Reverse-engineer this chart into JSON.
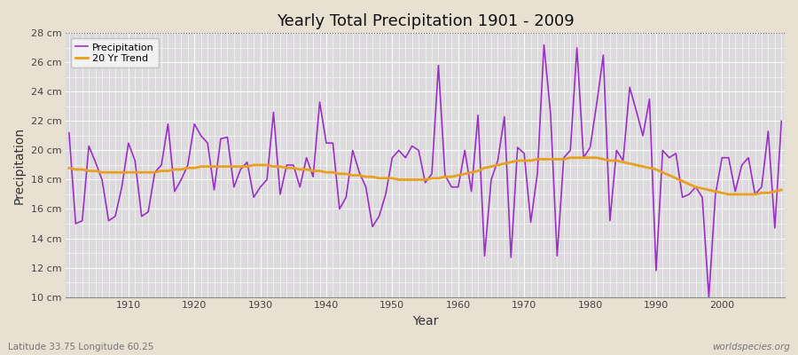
{
  "title": "Yearly Total Precipitation 1901 - 2009",
  "xlabel": "Year",
  "ylabel": "Precipitation",
  "subtitle_left": "Latitude 33.75 Longitude 60.25",
  "subtitle_right": "worldspecies.org",
  "precip_color": "#9B2FC9",
  "trend_color": "#E8A020",
  "fig_bg_color": "#E8E0D0",
  "plot_bg_color": "#DCDADC",
  "grid_color": "#FFFFFF",
  "ylim": [
    10,
    28
  ],
  "yticks": [
    10,
    12,
    14,
    16,
    18,
    20,
    22,
    24,
    26,
    28
  ],
  "years": [
    1901,
    1902,
    1903,
    1904,
    1905,
    1906,
    1907,
    1908,
    1909,
    1910,
    1911,
    1912,
    1913,
    1914,
    1915,
    1916,
    1917,
    1918,
    1919,
    1920,
    1921,
    1922,
    1923,
    1924,
    1925,
    1926,
    1927,
    1928,
    1929,
    1930,
    1931,
    1932,
    1933,
    1934,
    1935,
    1936,
    1937,
    1938,
    1939,
    1940,
    1941,
    1942,
    1943,
    1944,
    1945,
    1946,
    1947,
    1948,
    1949,
    1950,
    1951,
    1952,
    1953,
    1954,
    1955,
    1956,
    1957,
    1958,
    1959,
    1960,
    1961,
    1962,
    1963,
    1964,
    1965,
    1966,
    1967,
    1968,
    1969,
    1970,
    1971,
    1972,
    1973,
    1974,
    1975,
    1976,
    1977,
    1978,
    1979,
    1980,
    1981,
    1982,
    1983,
    1984,
    1985,
    1986,
    1987,
    1988,
    1989,
    1990,
    1991,
    1992,
    1993,
    1994,
    1995,
    1996,
    1997,
    1998,
    1999,
    2000,
    2001,
    2002,
    2003,
    2004,
    2005,
    2006,
    2007,
    2008,
    2009
  ],
  "precip": [
    21.2,
    15.0,
    15.2,
    20.3,
    19.2,
    18.0,
    15.2,
    15.5,
    17.5,
    20.5,
    19.3,
    15.5,
    15.8,
    18.5,
    19.0,
    21.8,
    17.2,
    18.0,
    19.0,
    21.8,
    21.0,
    20.5,
    17.3,
    20.8,
    20.9,
    17.5,
    18.7,
    19.2,
    16.8,
    17.5,
    18.0,
    22.6,
    17.0,
    19.0,
    19.0,
    17.5,
    19.5,
    18.2,
    23.3,
    20.5,
    20.5,
    16.0,
    16.8,
    20.0,
    18.5,
    17.5,
    14.8,
    15.5,
    17.0,
    19.5,
    20.0,
    19.5,
    20.3,
    20.0,
    17.8,
    18.4,
    25.8,
    18.3,
    17.5,
    17.5,
    20.0,
    17.2,
    22.4,
    12.8,
    18.0,
    19.3,
    22.3,
    12.7,
    20.2,
    19.8,
    15.1,
    18.4,
    27.2,
    22.5,
    12.8,
    19.5,
    20.0,
    27.0,
    19.5,
    20.2,
    23.2,
    26.5,
    15.2,
    20.0,
    19.3,
    24.3,
    22.7,
    21.0,
    23.5,
    11.8,
    20.0,
    19.5,
    19.8,
    16.8,
    17.0,
    17.5,
    16.8,
    10.0,
    17.0,
    19.5,
    19.5,
    17.2,
    19.0,
    19.5,
    17.0,
    17.5,
    21.3,
    14.7,
    22.0
  ],
  "trend": [
    18.8,
    18.7,
    18.7,
    18.6,
    18.6,
    18.5,
    18.5,
    18.5,
    18.5,
    18.5,
    18.5,
    18.5,
    18.5,
    18.5,
    18.6,
    18.6,
    18.7,
    18.7,
    18.8,
    18.8,
    18.9,
    18.9,
    18.9,
    18.9,
    18.9,
    18.9,
    18.9,
    18.9,
    19.0,
    19.0,
    19.0,
    18.9,
    18.9,
    18.8,
    18.8,
    18.7,
    18.7,
    18.6,
    18.6,
    18.5,
    18.5,
    18.4,
    18.4,
    18.3,
    18.3,
    18.2,
    18.2,
    18.1,
    18.1,
    18.1,
    18.0,
    18.0,
    18.0,
    18.0,
    18.0,
    18.1,
    18.1,
    18.2,
    18.2,
    18.3,
    18.4,
    18.5,
    18.6,
    18.8,
    18.9,
    19.0,
    19.1,
    19.2,
    19.3,
    19.3,
    19.3,
    19.4,
    19.4,
    19.4,
    19.4,
    19.4,
    19.5,
    19.5,
    19.5,
    19.5,
    19.5,
    19.4,
    19.3,
    19.3,
    19.2,
    19.1,
    19.0,
    18.9,
    18.8,
    18.7,
    18.5,
    18.3,
    18.1,
    17.9,
    17.7,
    17.5,
    17.4,
    17.3,
    17.2,
    17.1,
    17.0,
    17.0,
    17.0,
    17.0,
    17.0,
    17.1,
    17.1,
    17.2,
    17.3
  ]
}
